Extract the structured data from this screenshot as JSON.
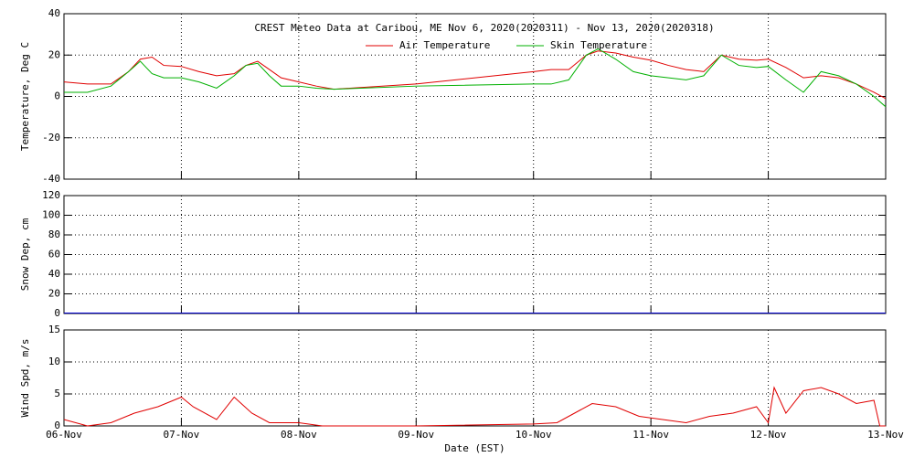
{
  "chart_data": [
    {
      "type": "line",
      "title": "CREST Meteo Data at Caribou, ME   Nov  6, 2020(2020311) - Nov 13, 2020(2020318)",
      "y_label": "Temperature, Deg C",
      "x": [
        0,
        0.2,
        0.4,
        0.55,
        0.65,
        0.75,
        0.85,
        1.0,
        1.15,
        1.3,
        1.45,
        1.55,
        1.65,
        1.75,
        1.85,
        2.0,
        2.15,
        2.3,
        3.0,
        4.0,
        4.15,
        4.3,
        4.45,
        4.55,
        4.7,
        4.85,
        5.0,
        5.15,
        5.3,
        5.45,
        5.6,
        5.75,
        5.9,
        6.0,
        6.15,
        6.3,
        6.45,
        6.6,
        6.75,
        6.9,
        7.0
      ],
      "series": [
        {
          "name": "Air Temperature",
          "color": "#e00000",
          "values": [
            7,
            6,
            6,
            12,
            18,
            19,
            15,
            14.5,
            12,
            10,
            11,
            15,
            17,
            13,
            9,
            7,
            5,
            3.5,
            6,
            12,
            13,
            13,
            20,
            22,
            21,
            19,
            17.5,
            15,
            13,
            12,
            20,
            18,
            17.5,
            18,
            14,
            9,
            10,
            9,
            6,
            2,
            -1
          ]
        },
        {
          "name": "Skin Temperature",
          "color": "#00b000",
          "values": [
            2,
            2,
            5,
            12,
            17,
            11,
            9,
            9,
            7,
            4,
            10,
            15,
            16,
            10,
            5,
            5,
            4,
            3.5,
            5,
            6,
            6,
            8,
            20,
            23,
            18,
            12,
            10,
            9,
            8,
            10,
            20,
            15,
            14,
            14.5,
            8,
            2,
            12,
            10,
            6,
            0,
            -5
          ]
        }
      ],
      "xlim": [
        0,
        7
      ],
      "ylim": [
        -40,
        40
      ],
      "yticks": [
        -40,
        -20,
        0,
        20,
        40
      ],
      "grid": true
    },
    {
      "type": "line",
      "y_label": "Snow Dep, cm",
      "x": [
        0,
        1,
        2,
        3,
        4,
        5,
        6,
        7
      ],
      "series": [
        {
          "name": "Snow Depth",
          "color": "#0000d0",
          "values": [
            0.5,
            0.5,
            0.5,
            0.5,
            0.5,
            0.5,
            0.5,
            0.5
          ]
        }
      ],
      "xlim": [
        0,
        7
      ],
      "ylim": [
        0,
        120
      ],
      "yticks": [
        0,
        20,
        40,
        60,
        80,
        100,
        120
      ],
      "grid": true
    },
    {
      "type": "line",
      "y_label": "Wind Spd, m/s",
      "x_label": "Date (EST)",
      "x": [
        0,
        0.1,
        0.2,
        0.4,
        0.6,
        0.8,
        1.0,
        1.1,
        1.3,
        1.45,
        1.6,
        1.75,
        2.0,
        2.2,
        3.0,
        4.0,
        4.2,
        4.35,
        4.5,
        4.7,
        4.9,
        5.1,
        5.3,
        5.5,
        5.7,
        5.9,
        6.0,
        6.05,
        6.15,
        6.3,
        6.45,
        6.6,
        6.75,
        6.9,
        6.95,
        7.0
      ],
      "series": [
        {
          "name": "Wind Speed",
          "color": "#e00000",
          "values": [
            1,
            0.5,
            0,
            0.5,
            2,
            3,
            4.5,
            3,
            1,
            4.5,
            2,
            0.5,
            0.5,
            0,
            0,
            0.3,
            0.5,
            2,
            3.5,
            3,
            1.5,
            1,
            0.5,
            1.5,
            2,
            3,
            0.5,
            6,
            2,
            5.5,
            6,
            5,
            3.5,
            4,
            0,
            0
          ]
        }
      ],
      "xlim": [
        0,
        7
      ],
      "xticks": [
        {
          "value": 0,
          "label": "06-Nov"
        },
        {
          "value": 1,
          "label": "07-Nov"
        },
        {
          "value": 2,
          "label": "08-Nov"
        },
        {
          "value": 3,
          "label": "09-Nov"
        },
        {
          "value": 4,
          "label": "10-Nov"
        },
        {
          "value": 5,
          "label": "11-Nov"
        },
        {
          "value": 6,
          "label": "12-Nov"
        },
        {
          "value": 7,
          "label": "13-Nov"
        }
      ],
      "ylim": [
        0,
        15
      ],
      "yticks": [
        0,
        5,
        10,
        15
      ],
      "grid": true
    }
  ]
}
